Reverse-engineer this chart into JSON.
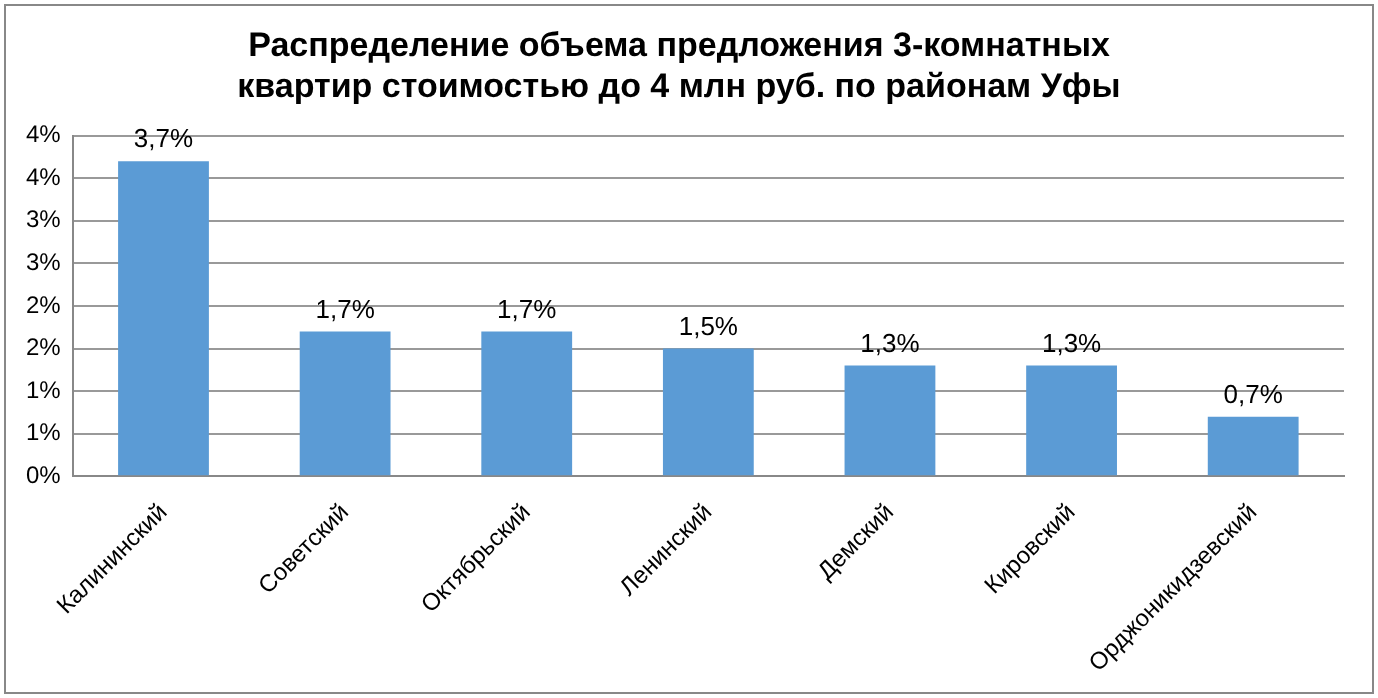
{
  "chart_data": {
    "type": "bar",
    "title": "Распределение объема предложения 3-комнатных\nквартир стоимостью до 4 млн руб. по районам Уфы",
    "categories": [
      "Калининский",
      "Советский",
      "Октябрьский",
      "Ленинский",
      "Демский",
      "Кировский",
      "Орджоникидзевский"
    ],
    "values": [
      3.7,
      1.7,
      1.7,
      1.5,
      1.3,
      1.3,
      0.7
    ],
    "value_labels": [
      "3,7%",
      "1,7%",
      "1,7%",
      "1,5%",
      "1,3%",
      "1,3%",
      "0,7%"
    ],
    "color": "#5b9bd5",
    "ylim": [
      0,
      4
    ],
    "yticks": [
      {
        "value": 0,
        "label": "0%"
      },
      {
        "value": 0.5,
        "label": "1%"
      },
      {
        "value": 1,
        "label": "1%"
      },
      {
        "value": 1.5,
        "label": "2%"
      },
      {
        "value": 2,
        "label": "2%"
      },
      {
        "value": 2.5,
        "label": "3%"
      },
      {
        "value": 3,
        "label": "3%"
      },
      {
        "value": 3.5,
        "label": "4%"
      },
      {
        "value": 4,
        "label": "4%"
      }
    ],
    "grid": "y",
    "legend": false
  }
}
